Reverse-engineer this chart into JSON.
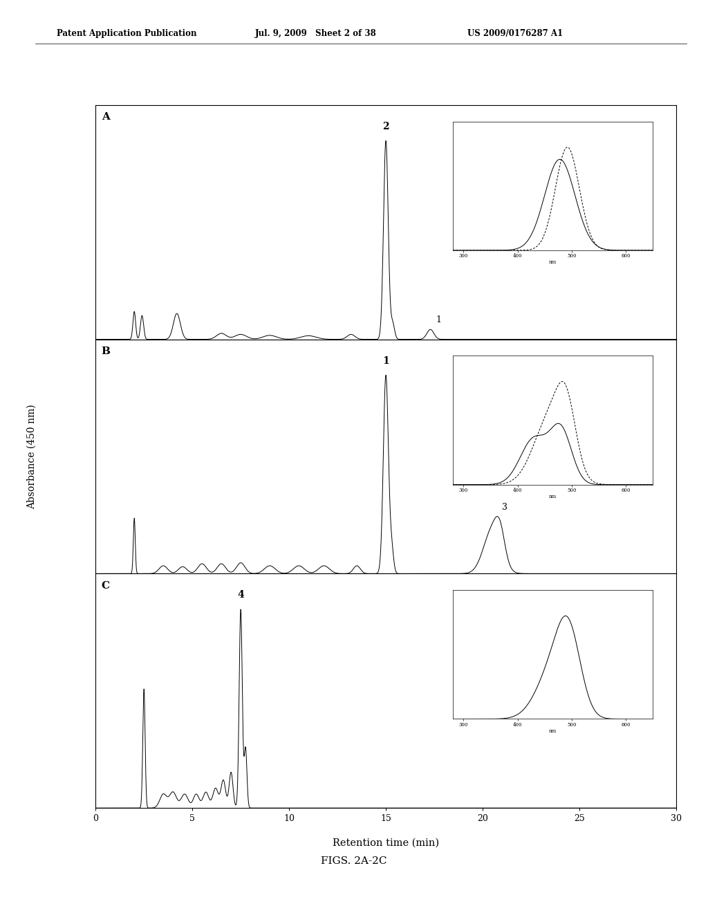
{
  "header_left": "Patent Application Publication",
  "header_mid": "Jul. 9, 2009   Sheet 2 of 38",
  "header_right": "US 2009/0176287 A1",
  "xlabel": "Retention time (min)",
  "ylabel": "Absorbance (450 nm)",
  "caption": "FIGS. 2A-2C",
  "xlim": [
    0,
    30
  ],
  "xticks": [
    0,
    5,
    10,
    15,
    20,
    25,
    30
  ],
  "panel_labels": [
    "A",
    "B",
    "C"
  ],
  "background_color": "#ffffff",
  "line_color": "#000000"
}
